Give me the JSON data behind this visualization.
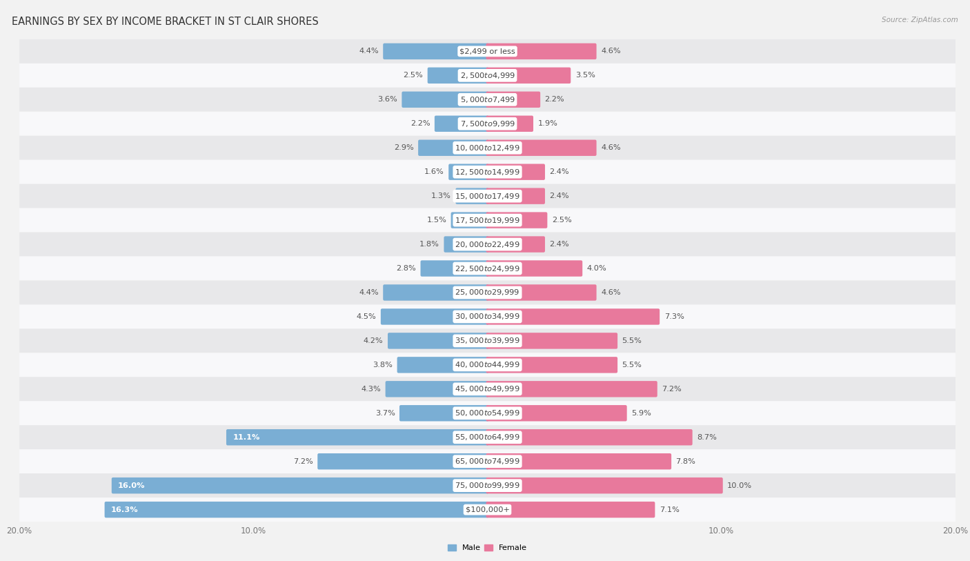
{
  "title": "EARNINGS BY SEX BY INCOME BRACKET IN ST CLAIR SHORES",
  "source": "Source: ZipAtlas.com",
  "categories": [
    "$2,499 or less",
    "$2,500 to $4,999",
    "$5,000 to $7,499",
    "$7,500 to $9,999",
    "$10,000 to $12,499",
    "$12,500 to $14,999",
    "$15,000 to $17,499",
    "$17,500 to $19,999",
    "$20,000 to $22,499",
    "$22,500 to $24,999",
    "$25,000 to $29,999",
    "$30,000 to $34,999",
    "$35,000 to $39,999",
    "$40,000 to $44,999",
    "$45,000 to $49,999",
    "$50,000 to $54,999",
    "$55,000 to $64,999",
    "$65,000 to $74,999",
    "$75,000 to $99,999",
    "$100,000+"
  ],
  "male_values": [
    4.4,
    2.5,
    3.6,
    2.2,
    2.9,
    1.6,
    1.3,
    1.5,
    1.8,
    2.8,
    4.4,
    4.5,
    4.2,
    3.8,
    4.3,
    3.7,
    11.1,
    7.2,
    16.0,
    16.3
  ],
  "female_values": [
    4.6,
    3.5,
    2.2,
    1.9,
    4.6,
    2.4,
    2.4,
    2.5,
    2.4,
    4.0,
    4.6,
    7.3,
    5.5,
    5.5,
    7.2,
    5.9,
    8.7,
    7.8,
    10.0,
    7.1
  ],
  "male_color": "#7aaed4",
  "female_color": "#e8799c",
  "male_label_color_large": "#ffffff",
  "male_label_color_small": "#666666",
  "female_label_color": "#666666",
  "male_label": "Male",
  "female_label": "Female",
  "xlim": 20.0,
  "bar_height": 0.55,
  "bg_color": "#f2f2f2",
  "row_color_odd": "#e8e8ea",
  "row_color_even": "#f8f8fa",
  "title_fontsize": 10.5,
  "cat_fontsize": 8.2,
  "val_fontsize": 8.2,
  "axis_fontsize": 8.5,
  "source_fontsize": 7.5,
  "large_val_threshold": 10.0
}
